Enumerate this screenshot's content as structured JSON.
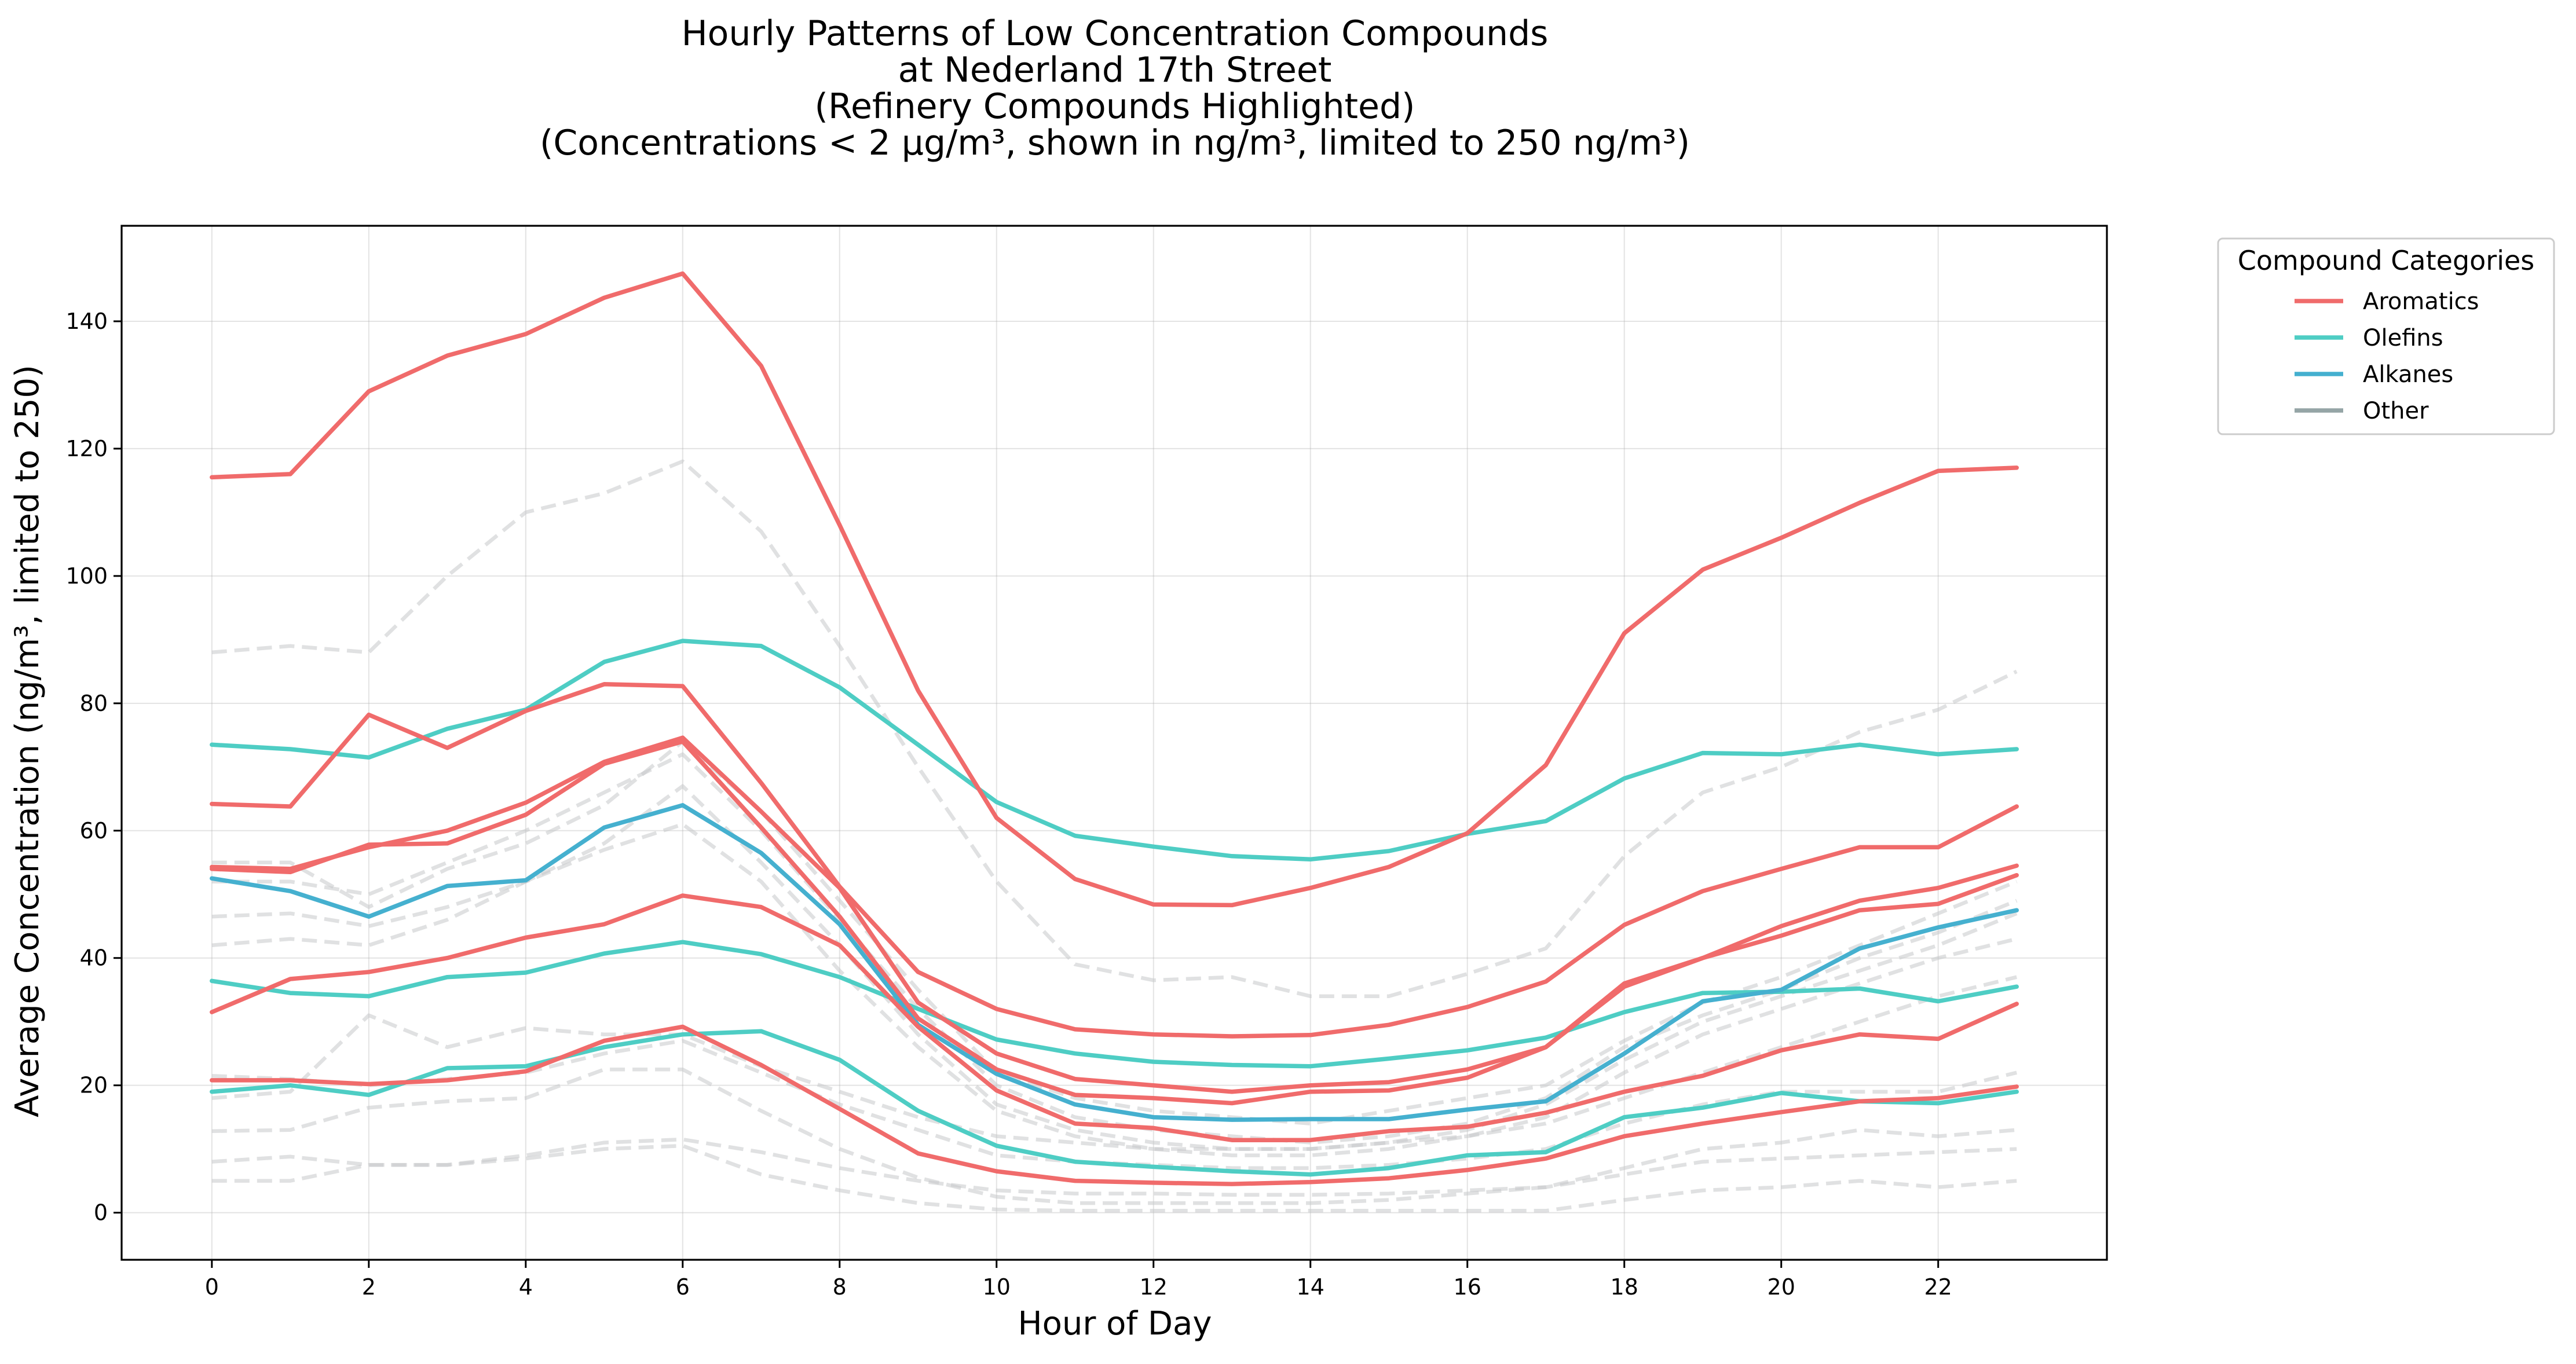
{
  "chart_data": {
    "type": "line",
    "title_lines": [
      "Hourly Patterns of Low Concentration Compounds",
      "at Nederland 17th Street",
      "(Refinery Compounds Highlighted)",
      "(Concentrations < 2 µg/m³, shown in ng/m³, limited to 250 ng/m³)"
    ],
    "xlabel": "Hour of Day",
    "ylabel": "Average Concentration (ng/m³, limited to 250)",
    "xlim": [
      -1.15,
      24.15
    ],
    "ylim": [
      -7.4,
      155
    ],
    "x_ticks": [
      0,
      2,
      4,
      6,
      8,
      10,
      12,
      14,
      16,
      18,
      20,
      22
    ],
    "y_ticks": [
      0,
      20,
      40,
      60,
      80,
      100,
      120,
      140
    ],
    "grid": true,
    "legend": {
      "title": "Compound Categories",
      "placement": "outside-top-right",
      "entries": [
        {
          "label": "Aromatics",
          "color": "#f06b6b"
        },
        {
          "label": "Olefins",
          "color": "#4ecdc4"
        },
        {
          "label": "Alkanes",
          "color": "#45b0cf"
        },
        {
          "label": "Other",
          "color": "#95a5a6"
        }
      ]
    },
    "x": [
      0,
      1,
      2,
      3,
      4,
      5,
      6,
      7,
      8,
      9,
      10,
      11,
      12,
      13,
      14,
      15,
      16,
      17,
      18,
      19,
      20,
      21,
      22,
      23
    ],
    "series": [
      {
        "category": "Other",
        "values": [
          88,
          89,
          88,
          100,
          110,
          113,
          118,
          107,
          89,
          70,
          52,
          39,
          36.5,
          37,
          34,
          34,
          37.5,
          41.5,
          56,
          66,
          70,
          75.5,
          79,
          85
        ]
      },
      {
        "category": "Other",
        "values": [
          55,
          55,
          48,
          54,
          58,
          64,
          74,
          63,
          49,
          35,
          22,
          18,
          16,
          15,
          14,
          16,
          18,
          20,
          27,
          33,
          37,
          42,
          47,
          52
        ]
      },
      {
        "category": "Other",
        "values": [
          52,
          52,
          50,
          55,
          60,
          66,
          72,
          60,
          46,
          32,
          20,
          15,
          13,
          12,
          11,
          12,
          14,
          18,
          26,
          31,
          35,
          40,
          44,
          49
        ]
      },
      {
        "category": "Other",
        "values": [
          46.5,
          47,
          45,
          48,
          52,
          58,
          67,
          55,
          42,
          28,
          17,
          13,
          11,
          10,
          10,
          11,
          13,
          17,
          24,
          30,
          34,
          38,
          42,
          47
        ]
      },
      {
        "category": "Other",
        "values": [
          42,
          43,
          42,
          46,
          52,
          57,
          61,
          52,
          38,
          26,
          16,
          12,
          10,
          9,
          9,
          10,
          12,
          15,
          22,
          28,
          32,
          36,
          40,
          43
        ]
      },
      {
        "category": "Other",
        "values": [
          18,
          19,
          31,
          26,
          29,
          28,
          28,
          23,
          19,
          15,
          12,
          11,
          10,
          10,
          10,
          11,
          12,
          14,
          18,
          22,
          26,
          30,
          34,
          37
        ]
      },
      {
        "category": "Other",
        "values": [
          21.5,
          21,
          20,
          21,
          22,
          25,
          27,
          22,
          17,
          13,
          9,
          8,
          7.5,
          7,
          7,
          7.5,
          8.5,
          10,
          14,
          17,
          19,
          19,
          19,
          22
        ]
      },
      {
        "category": "Other",
        "values": [
          12.8,
          13,
          16.5,
          17.5,
          18,
          22.5,
          22.5,
          16,
          10,
          5.5,
          2.5,
          1.5,
          1.5,
          1.5,
          1.5,
          2,
          3,
          4,
          7,
          10,
          11,
          13,
          12,
          13
        ]
      },
      {
        "category": "Other",
        "values": [
          8,
          8.8,
          7.5,
          7.5,
          9,
          11,
          11.5,
          9.5,
          7,
          5,
          3.5,
          3,
          3,
          2.8,
          2.8,
          3,
          3.5,
          4,
          6,
          8,
          8.5,
          9,
          9.5,
          10
        ]
      },
      {
        "category": "Other",
        "values": [
          5,
          5,
          7.5,
          7.5,
          8.5,
          10,
          10.5,
          6,
          3.5,
          1.5,
          0.5,
          0.3,
          0.3,
          0.3,
          0.3,
          0.3,
          0.3,
          0.3,
          2,
          3.5,
          4,
          5,
          4,
          5
        ]
      },
      {
        "category": "Olefins",
        "values": [
          73.5,
          72.8,
          71.5,
          76,
          79,
          86.5,
          89.8,
          89,
          82.5,
          73.5,
          64.5,
          59.2,
          57.5,
          56,
          55.5,
          56.8,
          59.5,
          61.5,
          68.2,
          72.2,
          72,
          73.5,
          72,
          72.8
        ]
      },
      {
        "category": "Olefins",
        "values": [
          36.4,
          34.5,
          34,
          37,
          37.7,
          40.7,
          42.5,
          40.6,
          37,
          32,
          27.2,
          25,
          23.7,
          23.2,
          23,
          24.2,
          25.5,
          27.5,
          31.5,
          34.5,
          34.7,
          35.2,
          33.2,
          35.5
        ]
      },
      {
        "category": "Olefins",
        "values": [
          19,
          20,
          18.5,
          22.7,
          23,
          26,
          28,
          28.5,
          24,
          16,
          10.5,
          8,
          7.2,
          6.5,
          6,
          7,
          9,
          9.5,
          15,
          16.5,
          18.8,
          17.5,
          17.2,
          19
        ]
      },
      {
        "category": "Alkanes",
        "values": [
          52.5,
          50.5,
          46.5,
          51.3,
          52.2,
          60.5,
          64,
          56.5,
          45.3,
          29.5,
          21.8,
          17,
          15,
          14.6,
          14.7,
          14.7,
          16.2,
          17.5,
          25,
          33.2,
          35,
          41.5,
          44.8,
          47.5
        ]
      },
      {
        "category": "Aromatics",
        "values": [
          115.5,
          116,
          129,
          134.6,
          138,
          143.7,
          147.5,
          133,
          108,
          82,
          62,
          52.4,
          48.4,
          48.3,
          51,
          54.3,
          59.6,
          70.3,
          91,
          101,
          106,
          111.5,
          116.5,
          117
        ]
      },
      {
        "category": "Aromatics",
        "values": [
          64.2,
          63.8,
          78.2,
          73,
          78.8,
          83,
          82.7,
          67.5,
          51.2,
          37.8,
          32,
          28.8,
          28,
          27.7,
          27.9,
          29.5,
          32.3,
          36.3,
          45.2,
          50.5,
          54,
          57.4,
          57.4,
          63.8
        ]
      },
      {
        "category": "Aromatics",
        "values": [
          54.3,
          54,
          57.4,
          60,
          64.4,
          70.8,
          74.6,
          63,
          51,
          33,
          25,
          21,
          20,
          19,
          20,
          20.5,
          22.5,
          26,
          36,
          40,
          45,
          49,
          51,
          54.5
        ]
      },
      {
        "category": "Aromatics",
        "values": [
          54,
          53.5,
          57.8,
          58,
          62.5,
          70.5,
          74,
          60.5,
          46.5,
          30.5,
          22.5,
          18.5,
          18,
          17.2,
          19,
          19.2,
          21.2,
          26,
          35.5,
          40,
          43.5,
          47.5,
          48.5,
          53
        ]
      },
      {
        "category": "Aromatics",
        "values": [
          31.5,
          36.7,
          37.8,
          40,
          43.2,
          45.3,
          49.8,
          48,
          42,
          29.2,
          19.2,
          14,
          13.3,
          11.4,
          11.4,
          12.8,
          13.5,
          15.7,
          19,
          21.5,
          25.5,
          28,
          27.3,
          32.8
        ]
      },
      {
        "category": "Aromatics",
        "values": [
          20.8,
          20.8,
          20.2,
          20.8,
          22.2,
          27,
          29.2,
          23.2,
          16.3,
          9.3,
          6.5,
          5,
          4.7,
          4.5,
          4.8,
          5.4,
          6.7,
          8.5,
          12,
          14,
          15.8,
          17.5,
          18,
          19.8
        ]
      }
    ]
  }
}
